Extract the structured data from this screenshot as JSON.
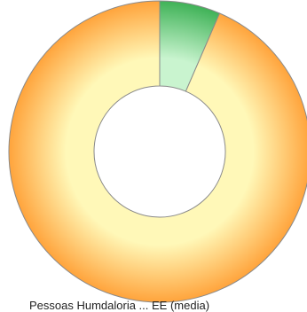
{
  "chart_data": {
    "type": "pie",
    "donut": true,
    "title": "",
    "slices": [
      {
        "value": 6.5,
        "gradient": [
          "#c9f4cf",
          "#3fb257"
        ]
      },
      {
        "value": 93.5,
        "gradient": [
          "#fff8b8",
          "#ffa43c"
        ]
      }
    ]
  },
  "caption": "Pessoas Humdaloria ... EE (media)"
}
